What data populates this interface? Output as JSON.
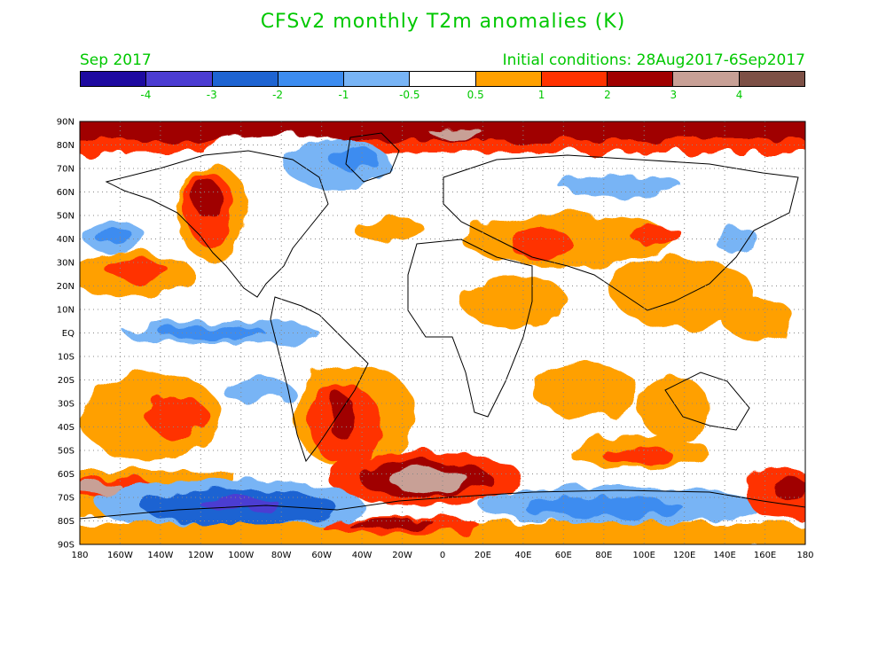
{
  "title": "CFSv2 monthly T2m anomalies (K)",
  "month": "Sep 2017",
  "initial_conditions": "Initial conditions: 28Aug2017-6Sep2017",
  "colorbar": {
    "colors": [
      "#1e0aa0",
      "#4b3cd2",
      "#1e64d2",
      "#3c8cf0",
      "#78b4f5",
      "#ffffff",
      "#ffa000",
      "#ff3200",
      "#a00000",
      "#c8a096",
      "#7d5046"
    ],
    "labels": [
      "-4",
      "-3",
      "-2",
      "-1",
      "-0.5",
      "0.5",
      "1",
      "2",
      "3",
      "4"
    ]
  },
  "lat_labels": [
    "90N",
    "80N",
    "70N",
    "60N",
    "50N",
    "40N",
    "30N",
    "20N",
    "10N",
    "EQ",
    "10S",
    "20S",
    "30S",
    "40S",
    "50S",
    "60S",
    "70S",
    "80S",
    "90S"
  ],
  "lon_labels": [
    "180",
    "160W",
    "140W",
    "120W",
    "100W",
    "80W",
    "60W",
    "40W",
    "20W",
    "0",
    "20E",
    "40E",
    "60E",
    "80E",
    "100E",
    "120E",
    "140E",
    "160E",
    "180"
  ]
}
